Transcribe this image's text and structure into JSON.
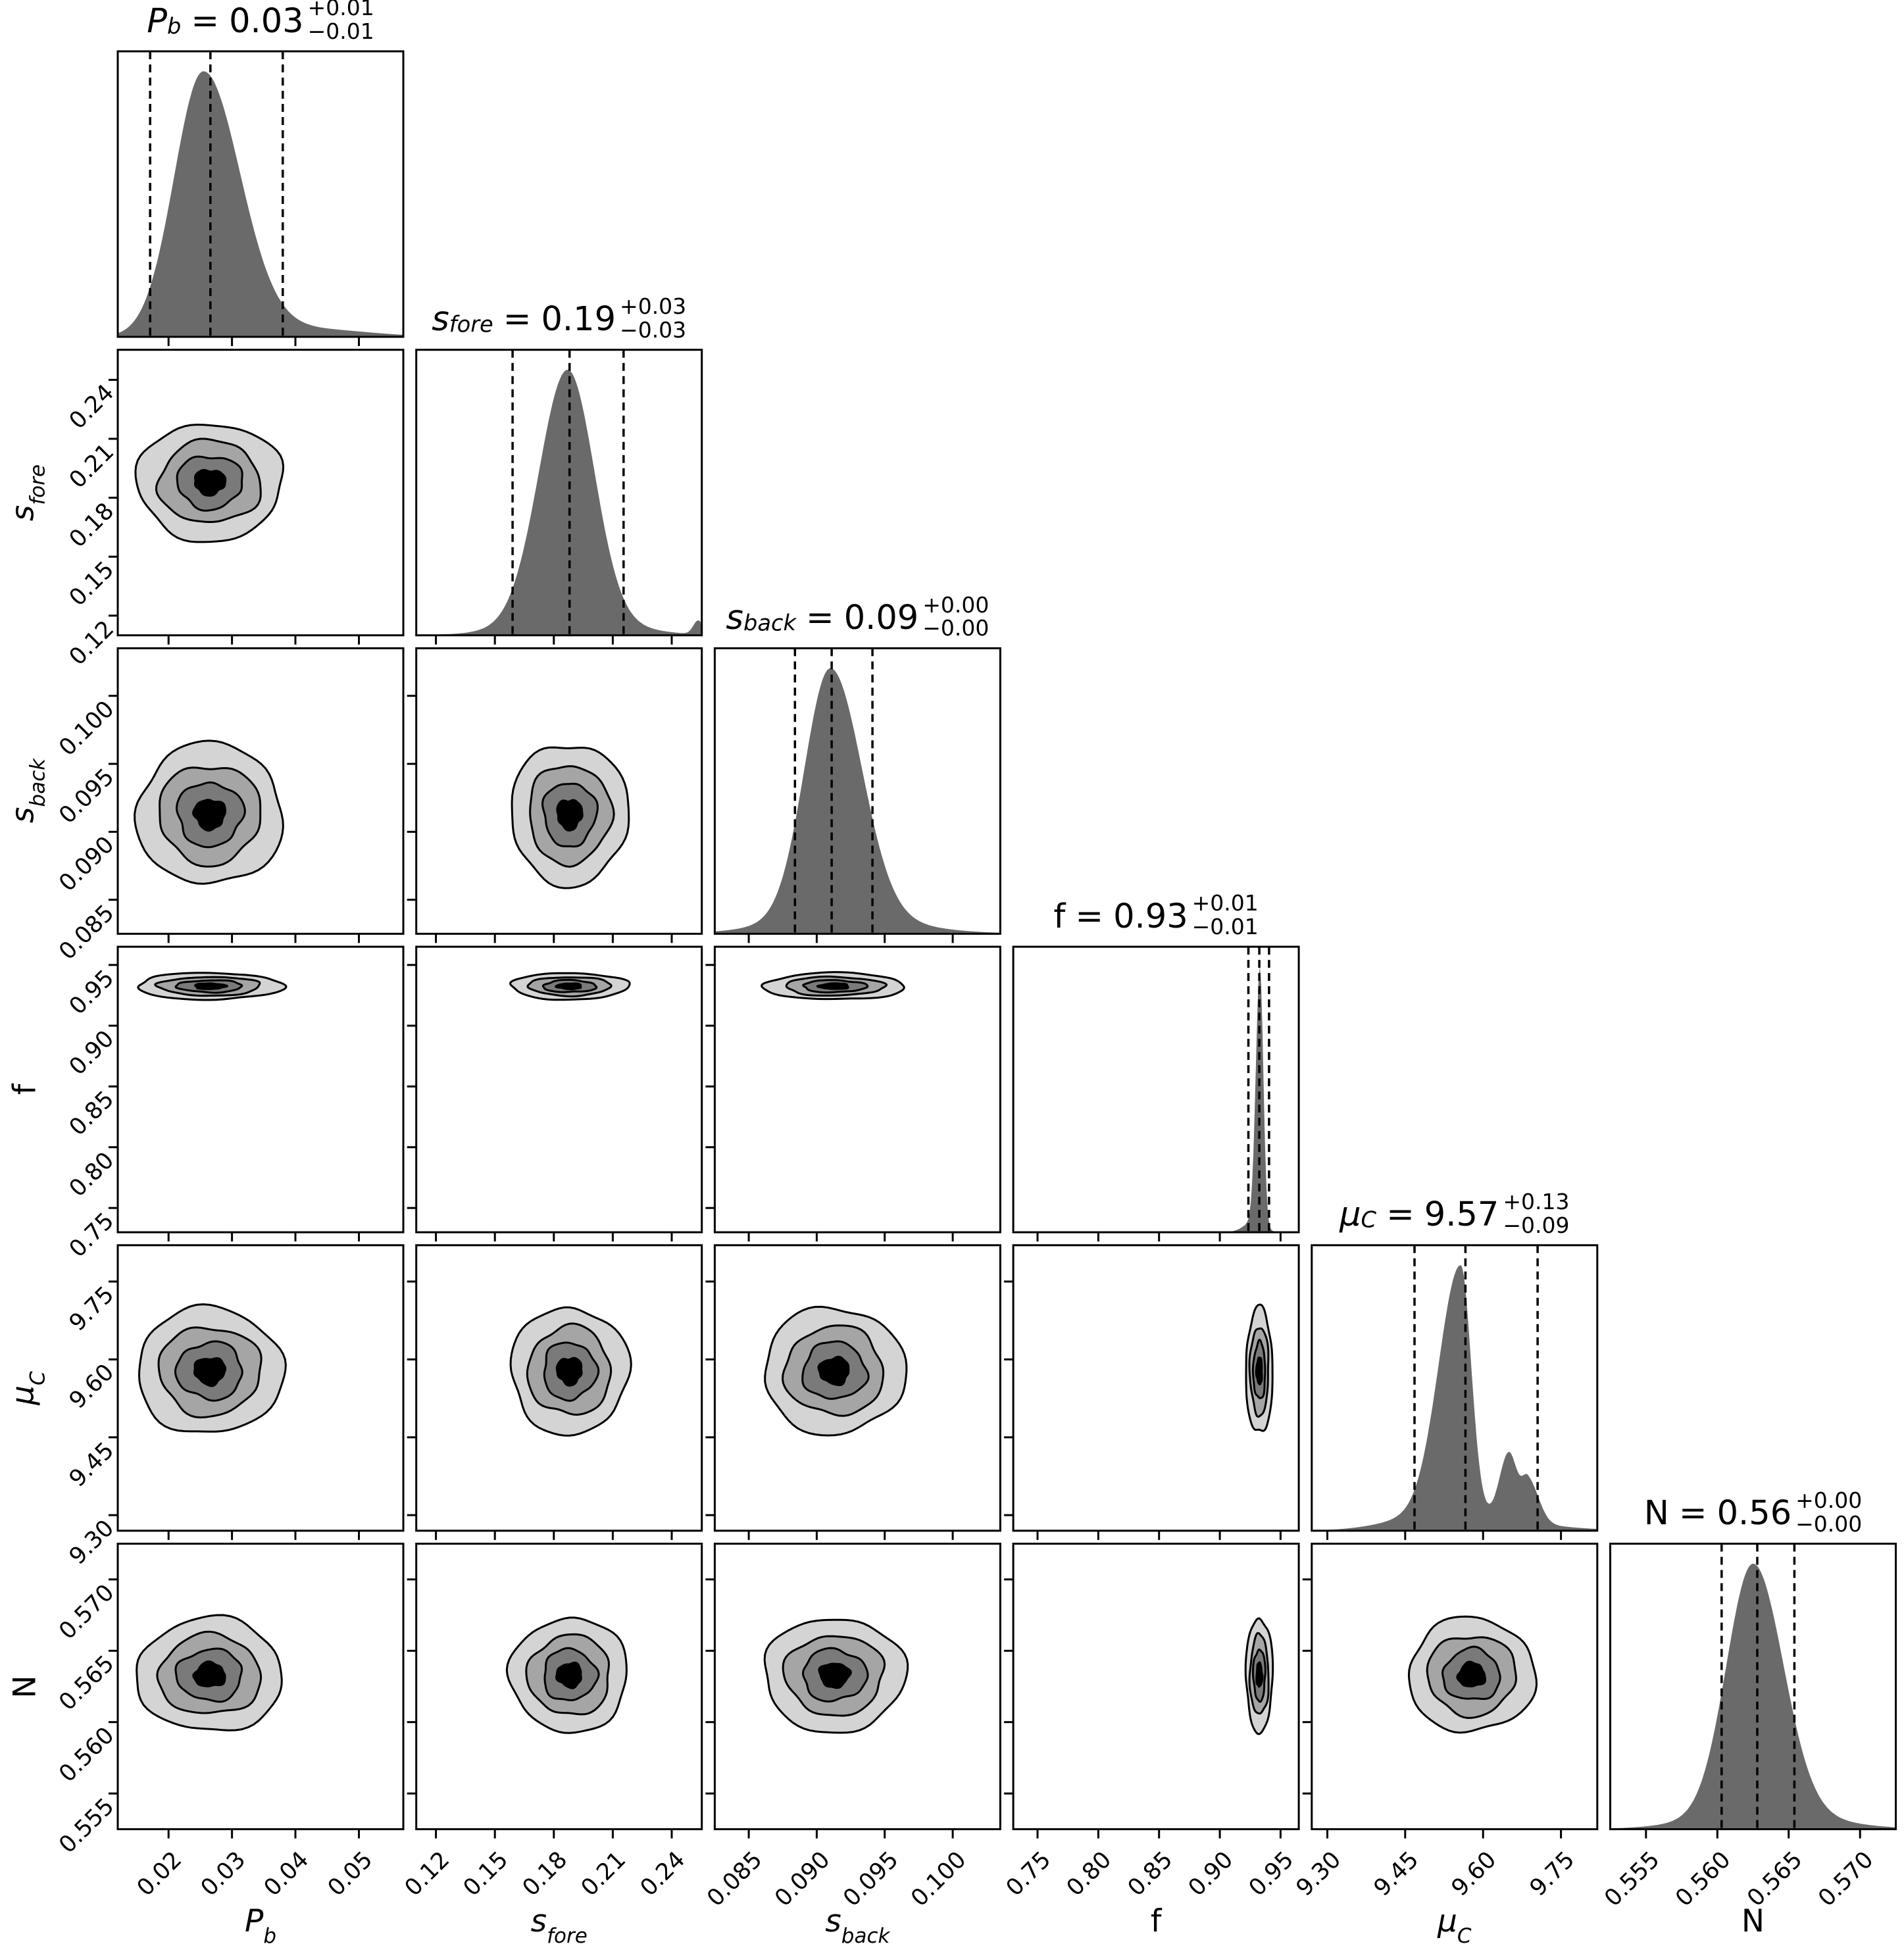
{
  "figure_type": "corner-plot (posterior distributions, 6 parameters)",
  "equals_sign": "=",
  "chart_data": {
    "type": "corner_plot",
    "n_params": 6,
    "grid": "lower-triangle of 6x6: diagonal = 1D marginal histograms with 16/50/84 percentile dashed lines, off-diagonal = 2D filled contour plots (4 grey levels)",
    "colors": {
      "background": "#ffffff",
      "line": "#000000",
      "histogram_fill": "#6a6a6a",
      "contour_fills": [
        "#d4d4d4",
        "#a5a5a5",
        "#7a7a7a",
        "#000000"
      ]
    },
    "contour_levels": {
      "scales": [
        1.0,
        0.7,
        0.45,
        0.21
      ]
    },
    "parameters": [
      {
        "id": "P_b",
        "label": {
          "base": "P",
          "sub": "b",
          "italic": true
        },
        "summary": {
          "value": "0.03",
          "plus": "+0.01",
          "minus": "−0.01"
        },
        "range": [
          0.012,
          0.057
        ],
        "ticks": [
          {
            "v": 0.02,
            "label": "0.02"
          },
          {
            "v": 0.03,
            "label": "0.03"
          },
          {
            "v": 0.04,
            "label": "0.04"
          },
          {
            "v": 0.05,
            "label": "0.05"
          }
        ],
        "quantiles": [
          0.0171,
          0.0266,
          0.038
        ],
        "dist": {
          "peaks": [
            {
              "c": 0.0255,
              "sl": 0.0046,
              "sr": 0.0058,
              "h": 1.0
            },
            {
              "c": 0.042,
              "sl": 0.007,
              "sr": 0.009,
              "h": 0.03
            }
          ]
        },
        "contour": {
          "center": 0.0265,
          "spread": 0.0115
        }
      },
      {
        "id": "s_fore",
        "label": {
          "base": "s",
          "sub": "fore",
          "italic": true
        },
        "summary": {
          "value": "0.19",
          "plus": "+0.03",
          "minus": "−0.03"
        },
        "range": [
          0.11,
          0.2553
        ],
        "ticks": [
          {
            "v": 0.12,
            "label": "0.12"
          },
          {
            "v": 0.15,
            "label": "0.15"
          },
          {
            "v": 0.18,
            "label": "0.18"
          },
          {
            "v": 0.21,
            "label": "0.21"
          },
          {
            "v": 0.24,
            "label": "0.24"
          }
        ],
        "quantiles": [
          0.159,
          0.188,
          0.2155
        ],
        "dist": {
          "peaks": [
            {
              "c": 0.187,
              "sl": 0.0145,
              "sr": 0.0135,
              "h": 1.0
            },
            {
              "c": 0.19,
              "sl": 0.028,
              "sr": 0.028,
              "h": 0.06
            },
            {
              "c": 0.2535,
              "sl": 0.0025,
              "sr": 0.0025,
              "h": 0.055
            }
          ]
        },
        "contour": {
          "center": 0.188,
          "spread": 0.03
        }
      },
      {
        "id": "s_back",
        "label": {
          "base": "s",
          "sub": "back",
          "italic": true
        },
        "summary": {
          "value": "0.09",
          "plus": "+0.00",
          "minus": "−0.00"
        },
        "range": [
          0.0825,
          0.1035
        ],
        "ticks": [
          {
            "v": 0.085,
            "label": "0.085"
          },
          {
            "v": 0.09,
            "label": "0.090"
          },
          {
            "v": 0.095,
            "label": "0.095"
          },
          {
            "v": 0.1,
            "label": "0.100"
          }
        ],
        "quantiles": [
          0.0884,
          0.0911,
          0.0941
        ],
        "dist": {
          "peaks": [
            {
              "c": 0.091,
              "sl": 0.0019,
              "sr": 0.0023,
              "h": 1.0
            },
            {
              "c": 0.0915,
              "sl": 0.0045,
              "sr": 0.005,
              "h": 0.07
            }
          ]
        },
        "contour": {
          "center": 0.0913,
          "spread": 0.0052
        }
      },
      {
        "id": "f",
        "label": {
          "base": "f",
          "sub": "",
          "italic": false
        },
        "summary": {
          "value": "0.93",
          "plus": "+0.01",
          "minus": "−0.01"
        },
        "range": [
          0.73,
          0.965
        ],
        "ticks": [
          {
            "v": 0.75,
            "label": "0.75"
          },
          {
            "v": 0.8,
            "label": "0.80"
          },
          {
            "v": 0.85,
            "label": "0.85"
          },
          {
            "v": 0.9,
            "label": "0.90"
          },
          {
            "v": 0.95,
            "label": "0.95"
          }
        ],
        "quantiles": [
          0.9235,
          0.9325,
          0.9405
        ],
        "dist": {
          "peaks": [
            {
              "c": 0.933,
              "sl": 0.0033,
              "sr": 0.0028,
              "h": 1.0
            },
            {
              "c": 0.9305,
              "sl": 0.009,
              "sr": 0.006,
              "h": 0.05
            }
          ]
        },
        "contour": {
          "center": 0.9325,
          "spread": 0.011
        }
      },
      {
        "id": "mu_C",
        "label": {
          "base": "μ",
          "sub": "C",
          "italic": true
        },
        "summary": {
          "value": "9.57",
          "plus": "+0.13",
          "minus": "−0.09"
        },
        "range": [
          9.27,
          9.82
        ],
        "ticks": [
          {
            "v": 9.3,
            "label": "9.30"
          },
          {
            "v": 9.45,
            "label": "9.45"
          },
          {
            "v": 9.6,
            "label": "9.60"
          },
          {
            "v": 9.75,
            "label": "9.75"
          }
        ],
        "quantiles": [
          9.468,
          9.566,
          9.705
        ],
        "dist": {
          "peaks": [
            {
              "c": 9.557,
              "sl": 0.042,
              "sr": 0.02,
              "h": 1.0
            },
            {
              "c": 9.65,
              "sl": 0.018,
              "sr": 0.016,
              "h": 0.27
            },
            {
              "c": 9.687,
              "sl": 0.012,
              "sr": 0.02,
              "h": 0.17
            },
            {
              "c": 9.52,
              "sl": 0.09,
              "sr": 0.14,
              "h": 0.07
            }
          ]
        },
        "contour": {
          "center": 9.578,
          "spread": 0.122
        }
      },
      {
        "id": "N",
        "label": {
          "base": "N",
          "sub": "",
          "italic": false
        },
        "summary": {
          "value": "0.56",
          "plus": "+0.00",
          "minus": "−0.00"
        },
        "range": [
          0.5525,
          0.5725
        ],
        "ticks": [
          {
            "v": 0.555,
            "label": "0.555"
          },
          {
            "v": 0.56,
            "label": "0.560"
          },
          {
            "v": 0.565,
            "label": "0.565"
          },
          {
            "v": 0.57,
            "label": "0.570"
          }
        ],
        "quantiles": [
          0.5603,
          0.5628,
          0.5654
        ],
        "dist": {
          "peaks": [
            {
              "c": 0.5625,
              "sl": 0.00185,
              "sr": 0.0021,
              "h": 1.0
            },
            {
              "c": 0.563,
              "sl": 0.0042,
              "sr": 0.0045,
              "h": 0.07
            }
          ]
        },
        "contour": {
          "center": 0.5633,
          "spread": 0.004
        }
      }
    ]
  }
}
